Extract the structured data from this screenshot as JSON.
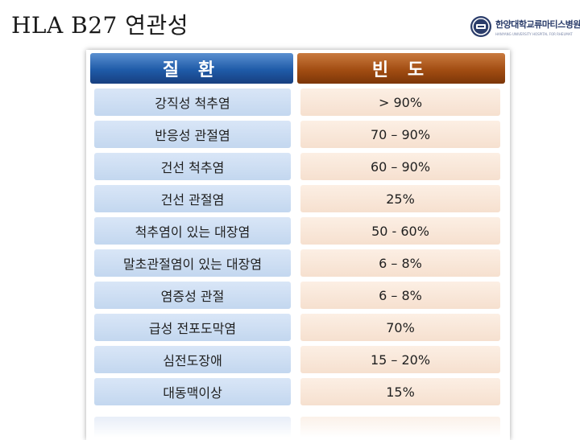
{
  "slide": {
    "title": "HLA B27 연관성"
  },
  "logo": {
    "name": "한양대학교류마티스병원",
    "subtitle": "HANYANG UNIVERSITY HOSPITAL FOR RHEUMATIC DISEASES"
  },
  "table": {
    "headers": {
      "disease": "질 환",
      "frequency": "빈 도"
    },
    "rows": [
      {
        "disease": "강직성 척추염",
        "frequency": "> 90%"
      },
      {
        "disease": "반응성 관절염",
        "frequency": "70 – 90%"
      },
      {
        "disease": "건선 척추염",
        "frequency": "60 – 90%"
      },
      {
        "disease": "건선 관절염",
        "frequency": "25%"
      },
      {
        "disease": "척추염이 있는 대장염",
        "frequency": "50 - 60%"
      },
      {
        "disease": "말초관절염이 있는 대장염",
        "frequency": "6 – 8%"
      },
      {
        "disease": "염증성 관절",
        "frequency": "6 – 8%"
      },
      {
        "disease": "급성 전포도막염",
        "frequency": "70%"
      },
      {
        "disease": "심전도장애",
        "frequency": "15 – 20%"
      },
      {
        "disease": "대동맥이상",
        "frequency": "15%"
      }
    ]
  },
  "colors": {
    "header_disease": "#1f5ba8",
    "header_frequency": "#a24d12",
    "cell_disease": "#c9dbf1",
    "cell_frequency": "#f8e5d6"
  }
}
